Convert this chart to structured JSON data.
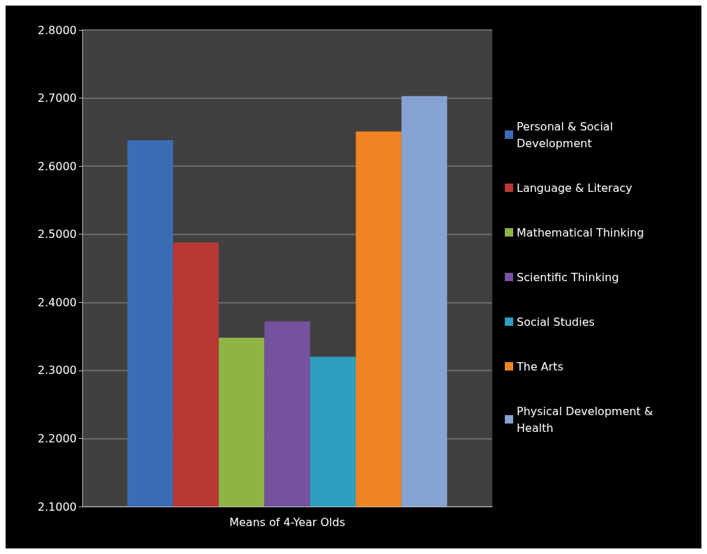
{
  "chart_data": {
    "type": "bar",
    "categories": [
      "Means of 4-Year Olds"
    ],
    "series": [
      {
        "name": "Personal & Social Development",
        "color": "#3a6db5",
        "values": [
          2.638
        ]
      },
      {
        "name": "Language & Literacy",
        "color": "#b93735",
        "values": [
          2.488
        ]
      },
      {
        "name": "Mathematical Thinking",
        "color": "#8fb446",
        "values": [
          2.348
        ]
      },
      {
        "name": "Scientific Thinking",
        "color": "#74529e",
        "values": [
          2.372
        ]
      },
      {
        "name": "Social Studies",
        "color": "#2f9fc0",
        "values": [
          2.32
        ]
      },
      {
        "name": "The Arts",
        "color": "#f08424",
        "values": [
          2.651
        ]
      },
      {
        "name": "Physical Development & Health",
        "color": "#87a3d3",
        "values": [
          2.703
        ]
      }
    ],
    "ylim": [
      2.1,
      2.8
    ],
    "yticks": [
      {
        "value": 2.1,
        "label": "2.1000"
      },
      {
        "value": 2.2,
        "label": "2.2000"
      },
      {
        "value": 2.3,
        "label": "2.3000"
      },
      {
        "value": 2.4,
        "label": "2.4000"
      },
      {
        "value": 2.5,
        "label": "2.5000"
      },
      {
        "value": 2.6,
        "label": "2.6000"
      },
      {
        "value": 2.7,
        "label": "2.7000"
      },
      {
        "value": 2.8,
        "label": "2.8000"
      }
    ],
    "grid": "y",
    "legend": "right"
  }
}
